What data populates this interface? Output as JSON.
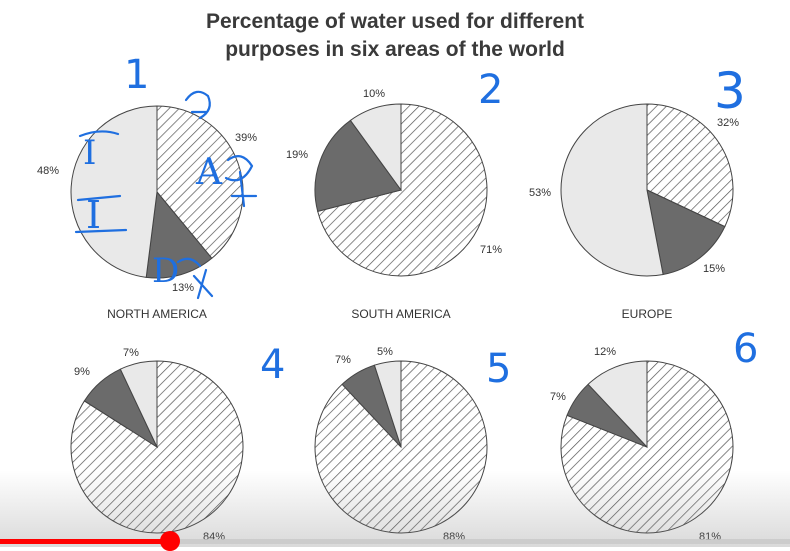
{
  "chart_data": {
    "type": "pie",
    "title": [
      "Percentage of water used for different",
      "purposes in six areas of the world"
    ],
    "colors": {
      "hatched": "#ffffff",
      "dark": "#6b6b6b",
      "light": "#e9e9e9",
      "stroke": "#444444"
    },
    "charts": [
      {
        "name": "NORTH AMERICA",
        "slices": [
          {
            "value": 39,
            "label": "39%",
            "style": "hatched"
          },
          {
            "value": 13,
            "label": "13%",
            "style": "dark"
          },
          {
            "value": 48,
            "label": "48%",
            "style": "light"
          }
        ]
      },
      {
        "name": "SOUTH AMERICA",
        "slices": [
          {
            "value": 71,
            "label": "71%",
            "style": "hatched"
          },
          {
            "value": 19,
            "label": "19%",
            "style": "dark"
          },
          {
            "value": 10,
            "label": "10%",
            "style": "light"
          }
        ]
      },
      {
        "name": "EUROPE",
        "slices": [
          {
            "value": 32,
            "label": "32%",
            "style": "hatched"
          },
          {
            "value": 15,
            "label": "15%",
            "style": "dark"
          },
          {
            "value": 53,
            "label": "53%",
            "style": "light"
          }
        ]
      },
      {
        "name": "",
        "slices": [
          {
            "value": 84,
            "label": "84%",
            "style": "hatched"
          },
          {
            "value": 9,
            "label": "9%",
            "style": "dark"
          },
          {
            "value": 7,
            "label": "7%",
            "style": "light"
          }
        ]
      },
      {
        "name": "",
        "slices": [
          {
            "value": 88,
            "label": "88%",
            "style": "hatched"
          },
          {
            "value": 7,
            "label": "7%",
            "style": "dark"
          },
          {
            "value": 5,
            "label": "5%",
            "style": "light"
          }
        ]
      },
      {
        "name": "",
        "slices": [
          {
            "value": 81,
            "label": "81%",
            "style": "hatched"
          },
          {
            "value": 7,
            "label": "7%",
            "style": "dark"
          },
          {
            "value": 12,
            "label": "12%",
            "style": "light"
          }
        ]
      }
    ]
  },
  "annotations": {
    "numbers": [
      "1",
      "2",
      "3",
      "4",
      "5",
      "6"
    ],
    "chart1_letters": [
      "I",
      "I",
      "A",
      "D"
    ],
    "ink_color": "#1f6fe0"
  },
  "player": {
    "progress": 0.215,
    "accent": "#ff0000"
  }
}
